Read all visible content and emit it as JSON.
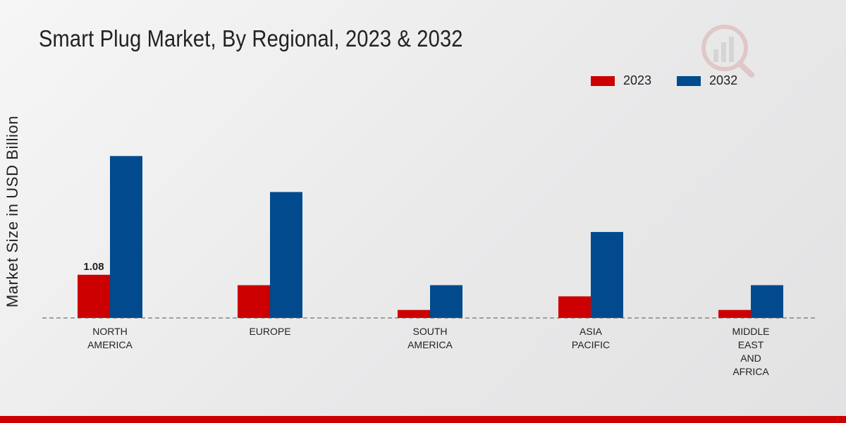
{
  "title": "Smart Plug Market, By Regional, 2023 & 2032",
  "colors": {
    "series_2023": "#cc0000",
    "series_2032": "#004a8d",
    "footer": "#cc0000"
  },
  "chart_data": {
    "type": "bar",
    "title": "Smart Plug Market, By Regional, 2023 & 2032",
    "xlabel": "",
    "ylabel": "Market Size in USD Billion",
    "categories": [
      [
        "NORTH",
        "AMERICA"
      ],
      [
        "EUROPE"
      ],
      [
        "SOUTH",
        "AMERICA"
      ],
      [
        "ASIA",
        "PACIFIC"
      ],
      [
        "MIDDLE",
        "EAST",
        "AND",
        "AFRICA"
      ]
    ],
    "series": [
      {
        "name": "2023",
        "values": [
          1.08,
          0.82,
          0.2,
          0.54,
          0.2
        ]
      },
      {
        "name": "2032",
        "values": [
          4.05,
          3.15,
          0.82,
          2.15,
          0.82
        ]
      }
    ],
    "data_labels": [
      {
        "series": "2023",
        "index": 0,
        "text": "1.08"
      }
    ],
    "ylim": [
      0,
      7.6
    ],
    "grid": false,
    "legend_position": "top-right"
  }
}
